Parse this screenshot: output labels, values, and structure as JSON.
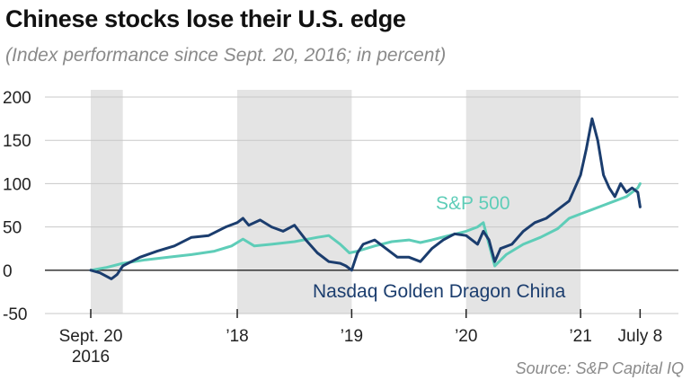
{
  "title": "Chinese stocks lose their U.S. edge",
  "subtitle": "(Index performance since Sept. 20, 2016; in percent)",
  "source": "Source: S&P Capital IQ",
  "colors": {
    "sp500": "#5ecdb8",
    "nasdaq_china": "#1b3d6e",
    "shade": "#e4e4e4",
    "grid": "#c8c8c8",
    "axis": "#222222"
  },
  "chart_data": {
    "type": "line",
    "title": "Chinese stocks lose their U.S. edge",
    "subtitle": "(Index performance since Sept. 20, 2016; in percent)",
    "ylim": [
      -50,
      200
    ],
    "yticks": [
      -50,
      0,
      50,
      100,
      150,
      200
    ],
    "xlim": [
      2016.72,
      2021.58
    ],
    "xticks": [
      {
        "x": 2016.72,
        "label": [
          "Sept. 20",
          "2016"
        ]
      },
      {
        "x": 2018.0,
        "label": [
          "’18"
        ]
      },
      {
        "x": 2019.0,
        "label": [
          "’19"
        ]
      },
      {
        "x": 2020.0,
        "label": [
          "’20"
        ]
      },
      {
        "x": 2021.0,
        "label": [
          "’21"
        ]
      },
      {
        "x": 2021.52,
        "label": [
          "July 8"
        ]
      }
    ],
    "shaded_years": [
      [
        2016.72,
        2017.0
      ],
      [
        2018.0,
        2019.0
      ],
      [
        2020.0,
        2021.0
      ]
    ],
    "grid": true,
    "series": [
      {
        "name": "S&P 500",
        "key": "sp500",
        "x": [
          2016.72,
          2016.85,
          2017.0,
          2017.2,
          2017.4,
          2017.6,
          2017.8,
          2017.95,
          2018.05,
          2018.15,
          2018.3,
          2018.5,
          2018.7,
          2018.8,
          2018.9,
          2018.98,
          2019.05,
          2019.2,
          2019.35,
          2019.5,
          2019.6,
          2019.7,
          2019.85,
          2020.0,
          2020.1,
          2020.15,
          2020.2,
          2020.25,
          2020.35,
          2020.5,
          2020.65,
          2020.8,
          2020.9,
          2021.0,
          2021.1,
          2021.2,
          2021.3,
          2021.4,
          2021.5,
          2021.52
        ],
        "y": [
          0,
          3,
          8,
          12,
          15,
          18,
          22,
          28,
          36,
          28,
          30,
          33,
          38,
          40,
          30,
          20,
          22,
          28,
          33,
          35,
          32,
          35,
          40,
          45,
          50,
          55,
          30,
          5,
          18,
          30,
          38,
          48,
          60,
          65,
          70,
          75,
          80,
          85,
          95,
          100
        ]
      },
      {
        "name": "Nasdaq Golden Dragon China",
        "key": "nasdaq_china",
        "x": [
          2016.72,
          2016.8,
          2016.9,
          2016.95,
          2017.0,
          2017.15,
          2017.3,
          2017.45,
          2017.6,
          2017.75,
          2017.9,
          2018.0,
          2018.05,
          2018.1,
          2018.2,
          2018.3,
          2018.4,
          2018.5,
          2018.6,
          2018.7,
          2018.8,
          2018.9,
          2018.95,
          2019.0,
          2019.05,
          2019.1,
          2019.2,
          2019.3,
          2019.4,
          2019.5,
          2019.6,
          2019.7,
          2019.8,
          2019.9,
          2020.0,
          2020.1,
          2020.15,
          2020.2,
          2020.25,
          2020.3,
          2020.4,
          2020.5,
          2020.6,
          2020.7,
          2020.8,
          2020.9,
          2021.0,
          2021.05,
          2021.1,
          2021.15,
          2021.2,
          2021.25,
          2021.3,
          2021.35,
          2021.4,
          2021.45,
          2021.5,
          2021.52
        ],
        "y": [
          0,
          -3,
          -10,
          -5,
          5,
          15,
          22,
          28,
          38,
          40,
          50,
          55,
          60,
          52,
          58,
          50,
          45,
          52,
          35,
          20,
          10,
          8,
          5,
          0,
          20,
          30,
          35,
          25,
          15,
          15,
          10,
          25,
          35,
          42,
          40,
          30,
          45,
          35,
          10,
          25,
          30,
          45,
          55,
          60,
          70,
          80,
          110,
          140,
          175,
          150,
          110,
          95,
          85,
          100,
          90,
          95,
          90,
          73
        ]
      }
    ],
    "annotations": [
      {
        "text": "S&P 500",
        "series": "sp500"
      },
      {
        "text": "Nasdaq Golden Dragon China",
        "series": "nasdaq_china"
      }
    ]
  }
}
